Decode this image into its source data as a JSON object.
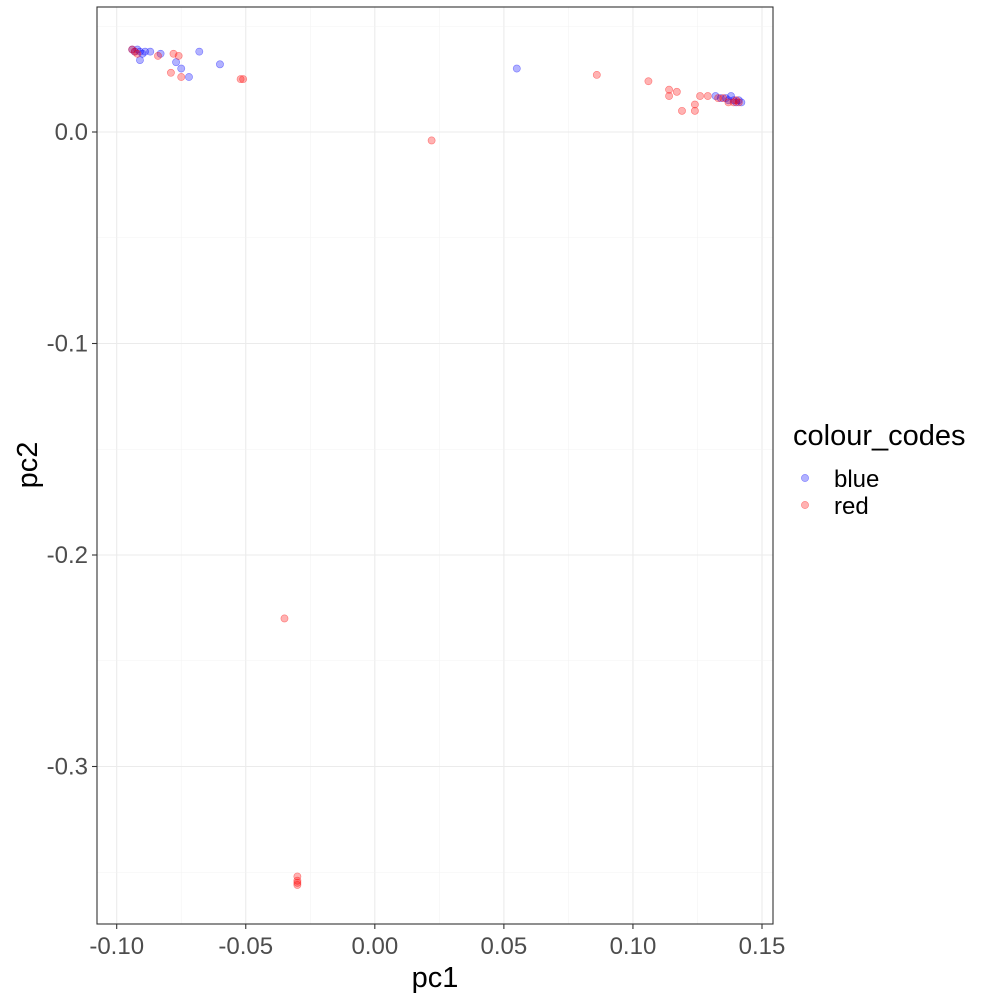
{
  "chart_data": {
    "type": "scatter",
    "xlabel": "pc1",
    "ylabel": "pc2",
    "xlim": [
      -0.1,
      0.15
    ],
    "ylim": [
      -0.35,
      0.0
    ],
    "x_ticks": [
      "-0.10",
      "-0.05",
      "0.00",
      "0.05",
      "0.10",
      "0.15"
    ],
    "y_ticks": [
      "0.0",
      "-0.1",
      "-0.2",
      "-0.3"
    ],
    "grid": true,
    "legend": {
      "title": "colour_codes",
      "position": "right",
      "entries": [
        "blue",
        "red"
      ]
    },
    "colors": {
      "blue": "#0000ff",
      "red": "#ff0000"
    },
    "series": [
      {
        "name": "blue",
        "x": [
          -0.094,
          -0.093,
          -0.092,
          -0.091,
          -0.09,
          -0.089,
          -0.091,
          -0.087,
          -0.083,
          -0.077,
          -0.075,
          -0.072,
          -0.068,
          -0.06,
          0.055,
          0.132,
          0.134,
          0.136,
          0.137,
          0.138,
          0.139,
          0.14,
          0.141,
          0.142
        ],
        "y": [
          0.039,
          0.038,
          0.039,
          0.038,
          0.037,
          0.038,
          0.034,
          0.038,
          0.037,
          0.033,
          0.03,
          0.026,
          0.038,
          0.032,
          0.03,
          0.017,
          0.016,
          0.016,
          0.015,
          0.017,
          0.015,
          0.014,
          0.015,
          0.014
        ]
      },
      {
        "name": "red",
        "x": [
          -0.094,
          -0.093,
          -0.092,
          -0.084,
          -0.079,
          -0.078,
          -0.076,
          -0.075,
          -0.052,
          -0.051,
          -0.035,
          -0.03,
          -0.03,
          -0.03,
          -0.03,
          0.022,
          0.086,
          0.106,
          0.114,
          0.114,
          0.117,
          0.119,
          0.124,
          0.124,
          0.126,
          0.129,
          0.133,
          0.135,
          0.137,
          0.139,
          0.14,
          0.141
        ],
        "y": [
          0.039,
          0.038,
          0.037,
          0.036,
          0.028,
          0.037,
          0.036,
          0.026,
          0.025,
          0.025,
          -0.23,
          -0.352,
          -0.354,
          -0.355,
          -0.356,
          -0.004,
          0.027,
          0.024,
          0.02,
          0.017,
          0.019,
          0.01,
          0.013,
          0.01,
          0.017,
          0.017,
          0.016,
          0.016,
          0.014,
          0.014,
          0.015,
          0.014
        ]
      }
    ]
  }
}
